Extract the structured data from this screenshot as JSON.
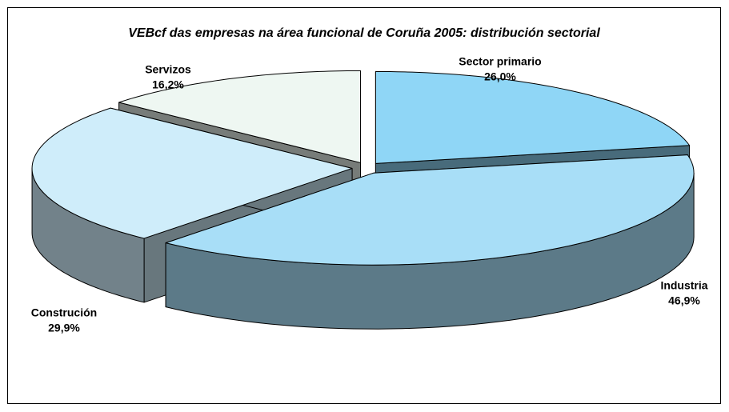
{
  "chart_data": {
    "type": "pie",
    "title": "VEBcf das empresas na área funcional de Coruña 2005: distribución sectorial",
    "categories": [
      "Sector primario",
      "Industria",
      "Construción",
      "Servizos"
    ],
    "values": [
      26.0,
      46.9,
      29.9,
      16.2
    ],
    "value_labels": [
      "26,0%",
      "46,9%",
      "29,9%",
      "16,2%"
    ],
    "colors": [
      "#8fd6f6",
      "#a8def7",
      "#cfedfa",
      "#eef7f2"
    ]
  }
}
